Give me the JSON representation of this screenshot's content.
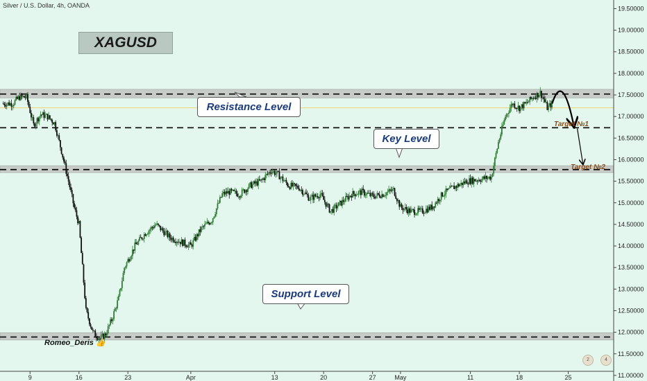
{
  "header": "Silver / U.S. Dollar, 4h, OANDA",
  "symbol": "XAGUSD",
  "author": "Romeo_Deris",
  "annotations": {
    "resistance": "Resistance Level",
    "key": "Key Level",
    "support": "Support Level",
    "target1": "Target №1",
    "target2": "Target №2"
  },
  "badges": [
    "2",
    "4"
  ],
  "colors": {
    "background": "#e3f7ee",
    "up": "#2e7d32",
    "down": "#111111",
    "band": "#c7ccc9",
    "level_line": "#111111",
    "current_price_line": "#f2c53d"
  },
  "chart_data": {
    "type": "candlestick",
    "y_ticks": [
      "19.50000",
      "19.00000",
      "18.50000",
      "18.00000",
      "17.50000",
      "17.00000",
      "16.50000",
      "16.00000",
      "15.50000",
      "15.00000",
      "14.50000",
      "14.00000",
      "13.50000",
      "13.00000",
      "12.50000",
      "12.00000",
      "11.50000",
      "11.00000"
    ],
    "ylim": [
      10.87,
      19.7
    ],
    "x_ticks": [
      {
        "label": "9",
        "t": 6.5
      },
      {
        "label": "16",
        "t": 13.5
      },
      {
        "label": "23",
        "t": 20.5
      },
      {
        "label": "Apr",
        "t": 29.5
      },
      {
        "label": "13",
        "t": 41.5
      },
      {
        "label": "20",
        "t": 48.5
      },
      {
        "label": "27",
        "t": 55.5
      },
      {
        "label": "May",
        "t": 59.5
      },
      {
        "label": "11",
        "t": 69.5
      },
      {
        "label": "18",
        "t": 76.5
      },
      {
        "label": "25",
        "t": 83.5
      }
    ],
    "xlim": [
      2.2,
      90.0
    ],
    "levels": [
      {
        "name": "resistance",
        "price": 17.52,
        "band": [
          17.43,
          17.63
        ]
      },
      {
        "name": "target1",
        "price": 16.74
      },
      {
        "name": "key",
        "price": 15.77,
        "band": [
          15.7,
          15.86
        ]
      },
      {
        "name": "support",
        "price": 11.89,
        "band": [
          11.82,
          11.99
        ]
      }
    ],
    "current_price": 17.2,
    "anchors": [
      [
        2.5,
        17.3
      ],
      [
        4,
        17.3
      ],
      [
        5,
        17.45
      ],
      [
        6,
        17.45
      ],
      [
        7,
        16.8
      ],
      [
        8,
        17.05
      ],
      [
        9,
        17.0
      ],
      [
        10,
        16.85
      ],
      [
        11,
        16.2
      ],
      [
        12,
        15.5
      ],
      [
        12.8,
        14.9
      ],
      [
        13.5,
        14.5
      ],
      [
        14.5,
        12.5
      ],
      [
        15.5,
        12.0
      ],
      [
        16.5,
        11.85
      ],
      [
        17.3,
        11.95
      ],
      [
        18.2,
        12.3
      ],
      [
        19.2,
        12.8
      ],
      [
        20,
        13.5
      ],
      [
        21.5,
        14.0
      ],
      [
        23,
        14.3
      ],
      [
        24.5,
        14.5
      ],
      [
        26.5,
        14.2
      ],
      [
        28,
        14.1
      ],
      [
        29.5,
        14.0
      ],
      [
        31,
        14.4
      ],
      [
        32.5,
        14.6
      ],
      [
        34,
        15.2
      ],
      [
        35,
        15.25
      ],
      [
        36.5,
        15.2
      ],
      [
        38,
        15.4
      ],
      [
        39.5,
        15.5
      ],
      [
        41,
        15.75
      ],
      [
        42,
        15.65
      ],
      [
        43.5,
        15.4
      ],
      [
        45,
        15.35
      ],
      [
        46.5,
        15.1
      ],
      [
        48,
        15.2
      ],
      [
        49.5,
        14.8
      ],
      [
        51,
        15.0
      ],
      [
        52.5,
        15.2
      ],
      [
        54,
        15.25
      ],
      [
        55.5,
        15.15
      ],
      [
        57,
        15.2
      ],
      [
        58.5,
        15.3
      ],
      [
        59.5,
        14.9
      ],
      [
        61,
        14.8
      ],
      [
        62.5,
        14.8
      ],
      [
        64,
        14.9
      ],
      [
        65.5,
        15.2
      ],
      [
        67,
        15.35
      ],
      [
        69,
        15.5
      ],
      [
        71,
        15.55
      ],
      [
        72.5,
        15.6
      ],
      [
        73.5,
        16.4
      ],
      [
        74.5,
        17.0
      ],
      [
        75.5,
        17.3
      ],
      [
        76.5,
        17.2
      ],
      [
        77.5,
        17.3
      ],
      [
        78.5,
        17.45
      ],
      [
        79.5,
        17.55
      ],
      [
        80,
        17.4
      ],
      [
        80.5,
        17.2
      ],
      [
        81.2,
        17.3
      ]
    ],
    "projection": [
      [
        81.2,
        17.3
      ],
      [
        82.7,
        17.62
      ],
      [
        84.3,
        16.78
      ],
      [
        84.8,
        16.72
      ],
      [
        85.6,
        15.9
      ]
    ]
  }
}
